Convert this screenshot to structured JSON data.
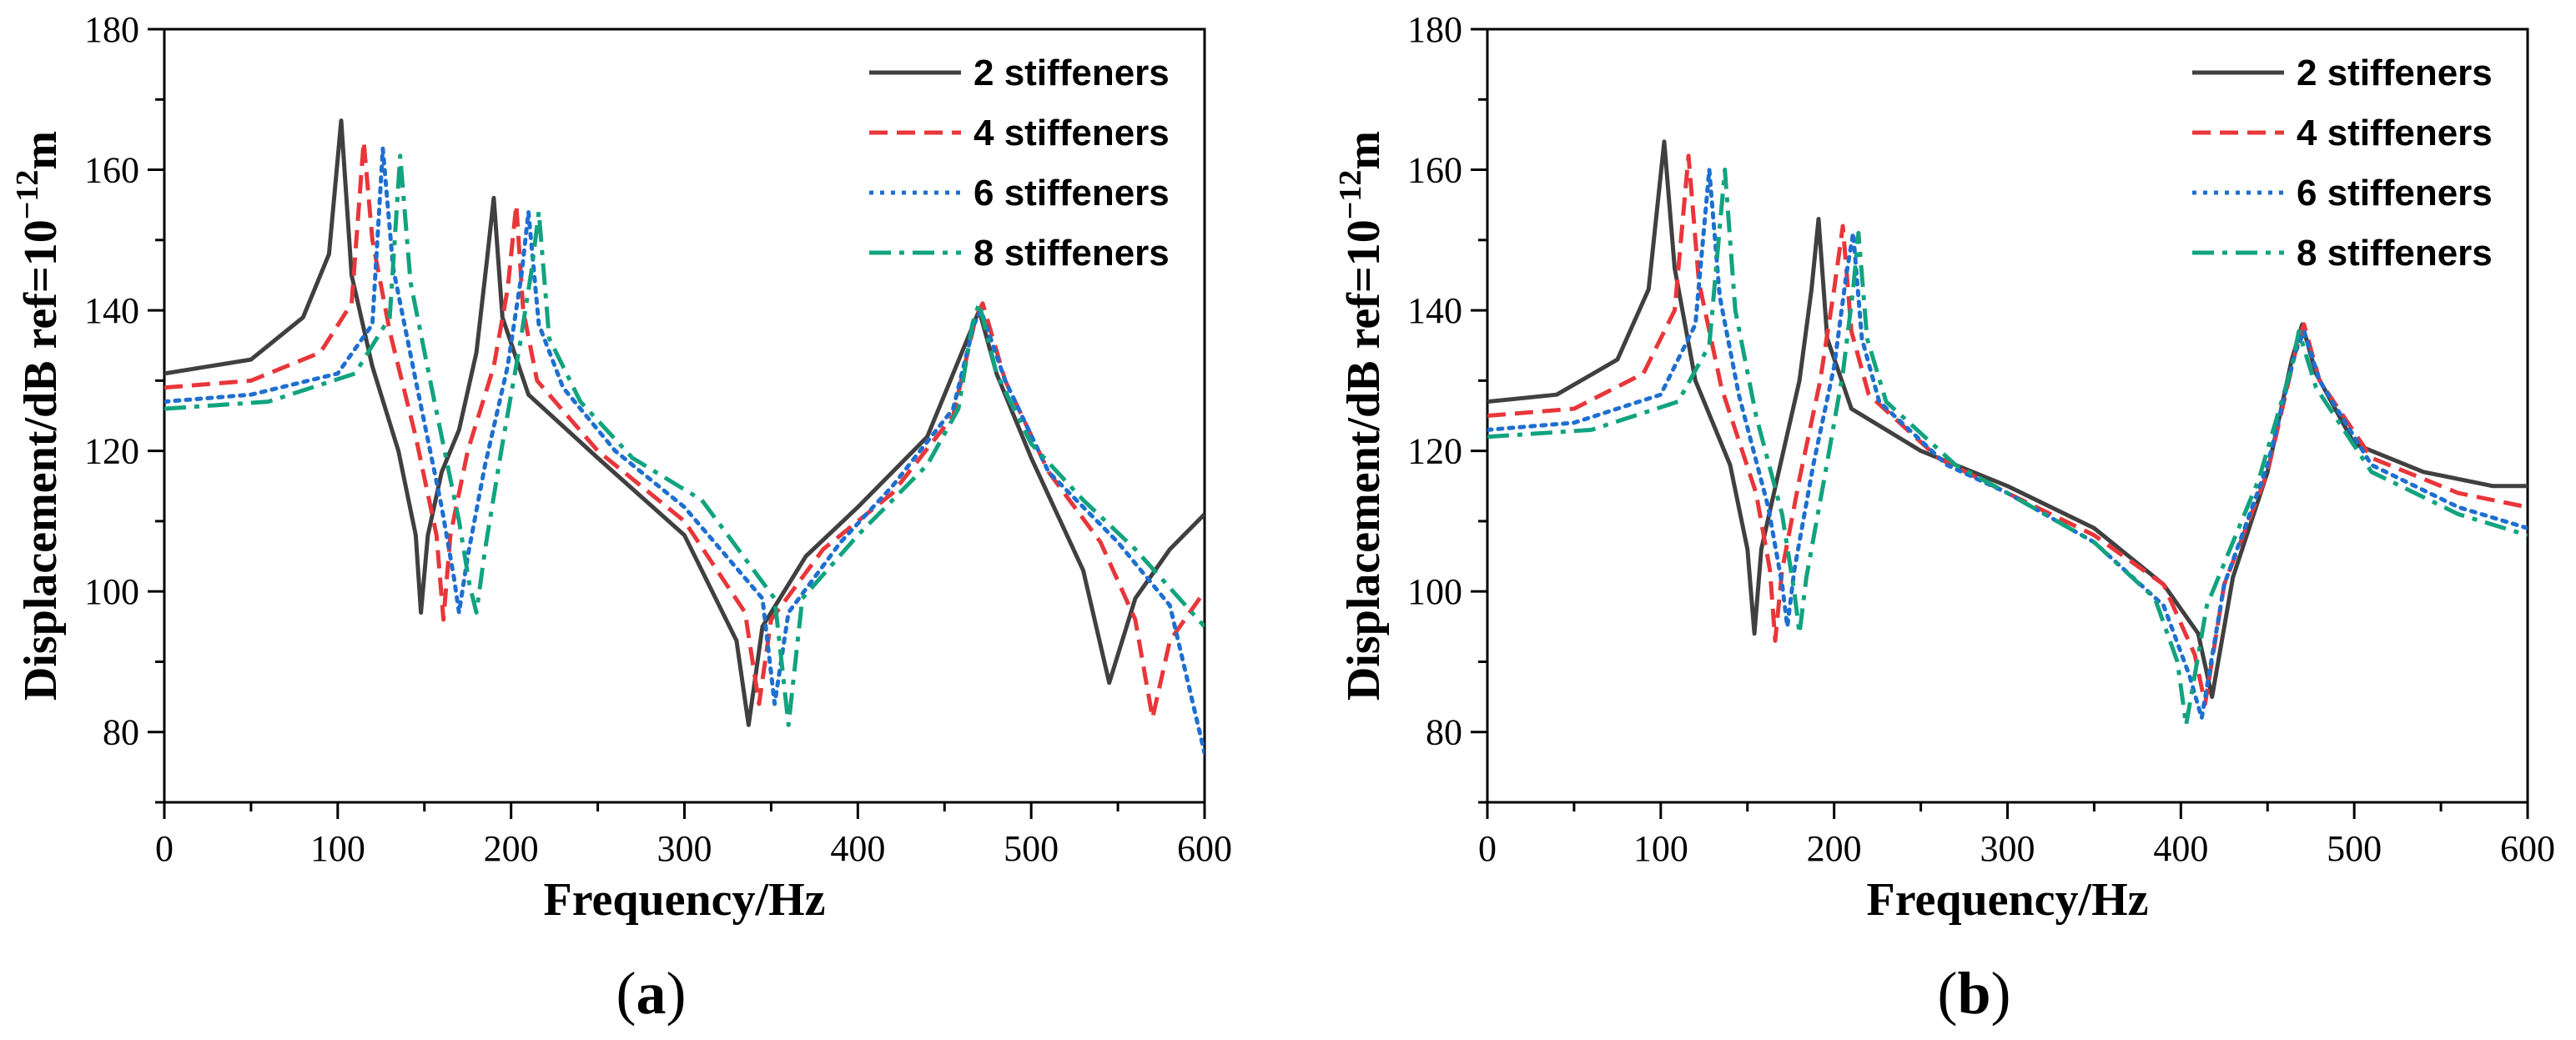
{
  "chart_data": [
    {
      "type": "line",
      "panel_label": "a",
      "xlabel": "Frequency/Hz",
      "ylabel_main": "Displacement/dB ref=10",
      "ylabel_exp": "−12",
      "ylabel_unit": "m",
      "xlim": [
        0,
        600
      ],
      "ylim": [
        70,
        180
      ],
      "xticks": [
        0,
        100,
        200,
        300,
        400,
        500,
        600
      ],
      "yticks": [
        80,
        100,
        120,
        140,
        160,
        180
      ],
      "grid": false,
      "legend_position": "top-right",
      "series": [
        {
          "name": "2 stiffeners",
          "color": "#404040",
          "dash": "solid",
          "x": [
            0,
            50,
            80,
            95,
            102,
            108,
            120,
            135,
            145,
            148,
            152,
            160,
            170,
            180,
            186,
            190,
            195,
            210,
            250,
            300,
            330,
            337,
            345,
            370,
            400,
            440,
            460,
            470,
            480,
            500,
            530,
            545,
            560,
            580,
            600
          ],
          "y": [
            131,
            133,
            139,
            148,
            167,
            145,
            132,
            120,
            108,
            97,
            108,
            117,
            123,
            134,
            147,
            156,
            139,
            128,
            119,
            108,
            93,
            81,
            95,
            105,
            112,
            122,
            134,
            140,
            131,
            119,
            103,
            87,
            99,
            106,
            111
          ]
        },
        {
          "name": "4 stiffeners",
          "color": "#e8363a",
          "dash": "dashed",
          "x": [
            0,
            50,
            90,
            108,
            115,
            120,
            130,
            145,
            157,
            161,
            165,
            175,
            190,
            198,
            203,
            207,
            215,
            250,
            300,
            335,
            343,
            350,
            380,
            420,
            455,
            468,
            472,
            485,
            510,
            540,
            560,
            570,
            580,
            600
          ],
          "y": [
            129,
            130,
            134,
            141,
            164,
            150,
            137,
            122,
            108,
            96,
            108,
            120,
            132,
            143,
            155,
            140,
            130,
            120,
            110,
            97,
            84,
            96,
            106,
            114,
            125,
            139,
            141,
            130,
            117,
            107,
            96,
            82,
            93,
            100
          ]
        },
        {
          "name": "6 stiffeners",
          "color": "#1e6fd0",
          "dash": "dotted",
          "x": [
            0,
            50,
            100,
            120,
            126,
            132,
            145,
            160,
            167,
            170,
            175,
            185,
            198,
            206,
            210,
            216,
            230,
            260,
            300,
            345,
            352,
            360,
            390,
            420,
            455,
            467,
            471,
            485,
            510,
            550,
            580,
            600
          ],
          "y": [
            127,
            128,
            131,
            138,
            163,
            146,
            130,
            112,
            102,
            97,
            105,
            118,
            132,
            145,
            154,
            138,
            129,
            120,
            112,
            99,
            84,
            97,
            107,
            115,
            126,
            138,
            140,
            130,
            117,
            107,
            98,
            77
          ]
        },
        {
          "name": "8 stiffeners",
          "color": "#11a37f",
          "dash": "dashdot",
          "x": [
            0,
            60,
            110,
            130,
            136,
            142,
            155,
            170,
            176,
            180,
            185,
            195,
            205,
            212,
            216,
            222,
            240,
            270,
            310,
            352,
            360,
            368,
            400,
            440,
            458,
            466,
            470,
            480,
            500,
            530,
            560,
            600
          ],
          "y": [
            126,
            127,
            131,
            139,
            162,
            144,
            128,
            110,
            101,
            97,
            106,
            121,
            135,
            146,
            154,
            136,
            127,
            119,
            113,
            99,
            81,
            99,
            108,
            118,
            126,
            138,
            141,
            131,
            121,
            113,
            106,
            95
          ]
        }
      ]
    },
    {
      "type": "line",
      "panel_label": "b",
      "xlabel": "Frequency/Hz",
      "ylabel_main": "Displacement/dB ref=10",
      "ylabel_exp": "−12",
      "ylabel_unit": "m",
      "xlim": [
        0,
        600
      ],
      "ylim": [
        70,
        180
      ],
      "xticks": [
        0,
        100,
        200,
        300,
        400,
        500,
        600
      ],
      "yticks": [
        80,
        100,
        120,
        140,
        160,
        180
      ],
      "grid": false,
      "legend_position": "top-right",
      "series": [
        {
          "name": "2 stiffeners",
          "color": "#404040",
          "dash": "solid",
          "x": [
            0,
            40,
            75,
            93,
            102,
            108,
            120,
            140,
            150,
            154,
            158,
            168,
            180,
            187,
            191,
            196,
            210,
            250,
            300,
            350,
            390,
            410,
            418,
            430,
            450,
            464,
            470,
            478,
            500,
            540,
            580,
            600
          ],
          "y": [
            127,
            128,
            133,
            143,
            164,
            146,
            130,
            118,
            106,
            94,
            106,
            117,
            130,
            143,
            153,
            136,
            126,
            120,
            115,
            109,
            101,
            94,
            85,
            102,
            117,
            133,
            138,
            131,
            121,
            117,
            115,
            115
          ]
        },
        {
          "name": "4 stiffeners",
          "color": "#e8363a",
          "dash": "dashed",
          "x": [
            0,
            50,
            90,
            108,
            116,
            122,
            135,
            155,
            163,
            166,
            170,
            180,
            192,
            200,
            205,
            210,
            220,
            260,
            300,
            350,
            390,
            408,
            414,
            425,
            450,
            466,
            471,
            480,
            510,
            560,
            600
          ],
          "y": [
            125,
            126,
            131,
            140,
            162,
            144,
            129,
            114,
            103,
            93,
            103,
            116,
            130,
            143,
            152,
            137,
            128,
            119,
            114,
            108,
            101,
            91,
            84,
            101,
            117,
            134,
            138,
            130,
            119,
            114,
            112
          ]
        },
        {
          "name": "6 stiffeners",
          "color": "#1e6fd0",
          "dash": "dotted",
          "x": [
            0,
            50,
            100,
            120,
            128,
            134,
            145,
            162,
            170,
            173,
            177,
            188,
            200,
            207,
            211,
            216,
            226,
            265,
            300,
            350,
            390,
            405,
            412,
            425,
            450,
            466,
            471,
            480,
            510,
            560,
            600
          ],
          "y": [
            123,
            124,
            128,
            138,
            160,
            142,
            128,
            112,
            101,
            95,
            103,
            118,
            132,
            145,
            151,
            136,
            127,
            118,
            114,
            107,
            98,
            88,
            82,
            101,
            118,
            134,
            137,
            130,
            118,
            112,
            109
          ]
        },
        {
          "name": "8 stiffeners",
          "color": "#11a37f",
          "dash": "dashdot",
          "x": [
            0,
            60,
            110,
            128,
            137,
            143,
            155,
            170,
            177,
            180,
            184,
            195,
            205,
            211,
            214,
            219,
            230,
            270,
            300,
            350,
            385,
            398,
            403,
            415,
            445,
            464,
            468,
            478,
            510,
            560,
            600
          ],
          "y": [
            122,
            123,
            127,
            135,
            160,
            140,
            125,
            111,
            100,
            94,
            102,
            117,
            131,
            143,
            151,
            136,
            127,
            118,
            114,
            107,
            99,
            90,
            81,
            98,
            116,
            132,
            137,
            129,
            117,
            111,
            108
          ]
        }
      ]
    }
  ]
}
